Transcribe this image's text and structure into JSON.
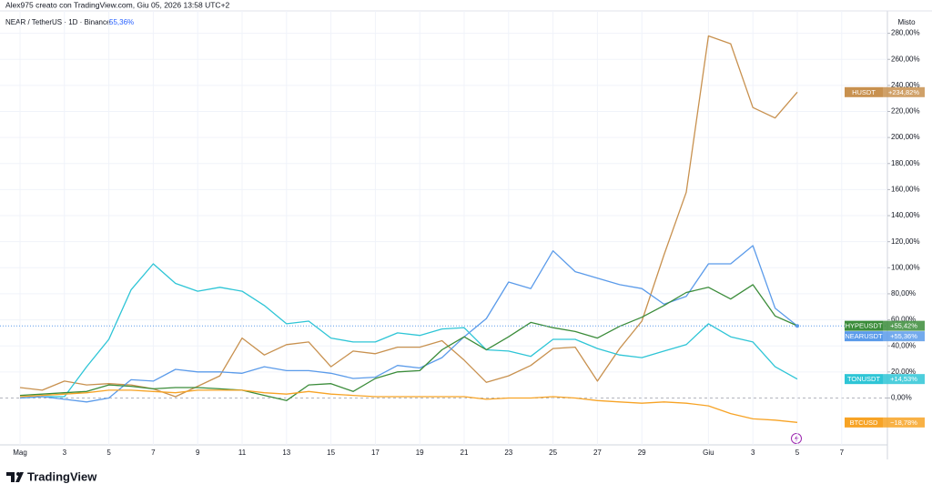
{
  "chart_data": {
    "type": "line",
    "header": "Alex975 creato con TradingView.com, Giu 05, 2026 13:58 UTC+2",
    "symbol": "NEAR / TetherUS · 1D · Binance",
    "symbol_change": "55,36%",
    "scale_mode": "Misto",
    "brand": "TradingView",
    "categories": [
      "Mag",
      null,
      "3",
      null,
      "5",
      null,
      "7",
      null,
      "9",
      null,
      "11",
      null,
      "13",
      null,
      "15",
      null,
      "17",
      null,
      "19",
      null,
      "21",
      null,
      "23",
      null,
      "25",
      null,
      "27",
      null,
      "29",
      null,
      null,
      "Giu",
      null,
      "3",
      null,
      "5",
      null,
      "7"
    ],
    "ylim": [
      -36,
      293
    ],
    "yticks": [
      {
        "value": 0,
        "label": "0,00%"
      },
      {
        "value": 20,
        "label": "20,00%"
      },
      {
        "value": 40,
        "label": "40,00%"
      },
      {
        "value": 60,
        "label": "60,00%"
      },
      {
        "value": 80,
        "label": "80,00%"
      },
      {
        "value": 100,
        "label": "100,00%"
      },
      {
        "value": 120,
        "label": "120,00%"
      },
      {
        "value": 140,
        "label": "140,00%"
      },
      {
        "value": 160,
        "label": "160,00%"
      },
      {
        "value": 180,
        "label": "180,00%"
      },
      {
        "value": 200,
        "label": "200,00%"
      },
      {
        "value": 220,
        "label": "220,00%"
      },
      {
        "value": 240,
        "label": "240,00%"
      },
      {
        "value": 260,
        "label": "260,00%"
      },
      {
        "value": 280,
        "label": "280,00%"
      }
    ],
    "grid": true,
    "series": [
      {
        "name": "HUSDT",
        "color": "#c8914f",
        "values": [
          8,
          6,
          13,
          10,
          11,
          10,
          7,
          1,
          9,
          17,
          46,
          33,
          41,
          43,
          24,
          36,
          34,
          39,
          39,
          44,
          29,
          12,
          17,
          25,
          38,
          39,
          13,
          38,
          59,
          110,
          158,
          278,
          272,
          223,
          215,
          234.82,
          null,
          null
        ],
        "value_labels": [
          null,
          null,
          null,
          null,
          null,
          null,
          null,
          null,
          null,
          null,
          null,
          null,
          null,
          null,
          null,
          null,
          null,
          null,
          null,
          null,
          null,
          null,
          null,
          null,
          null,
          null,
          null,
          null,
          null,
          null,
          null,
          null,
          null,
          null,
          null,
          "+234,82%",
          null,
          null
        ]
      },
      {
        "name": "TONUSDT",
        "color": "#2ec5d6",
        "values": [
          0,
          1,
          1,
          24,
          45,
          83,
          103,
          88,
          82,
          85,
          82,
          71,
          57,
          59,
          46,
          43,
          43,
          50,
          48,
          53,
          54,
          37,
          36,
          32,
          45,
          45,
          38,
          33,
          31,
          36,
          41,
          57,
          47,
          43,
          24,
          14.53,
          null,
          null
        ],
        "value_labels": [
          null,
          null,
          null,
          null,
          null,
          null,
          null,
          null,
          null,
          null,
          null,
          null,
          null,
          null,
          null,
          null,
          null,
          null,
          null,
          null,
          null,
          null,
          null,
          null,
          null,
          null,
          null,
          null,
          null,
          null,
          null,
          null,
          null,
          null,
          null,
          "+14,53%",
          null,
          null
        ]
      },
      {
        "name": "NEARUSDT",
        "color": "#5b9bea",
        "values": [
          0,
          1,
          -1,
          -3,
          0,
          14,
          13,
          22,
          20,
          20,
          19,
          24,
          21,
          21,
          19,
          15,
          16,
          25,
          23,
          31,
          47,
          61,
          89,
          84,
          113,
          97,
          92,
          87,
          84,
          72,
          78,
          103,
          103,
          117,
          69,
          55.36,
          null,
          null
        ],
        "value_labels": [
          null,
          null,
          null,
          null,
          null,
          null,
          null,
          null,
          null,
          null,
          null,
          null,
          null,
          null,
          null,
          null,
          null,
          null,
          null,
          null,
          null,
          null,
          null,
          null,
          null,
          null,
          null,
          null,
          null,
          null,
          null,
          null,
          null,
          null,
          null,
          "+55,36%",
          null,
          null
        ]
      },
      {
        "name": "HYPEUSDT",
        "color": "#3b8c3a",
        "values": [
          2,
          3,
          4,
          5,
          10,
          9,
          7,
          8,
          8,
          7,
          6,
          2,
          -2,
          10,
          11,
          5,
          15,
          20,
          21,
          37,
          47,
          37,
          47,
          58,
          54,
          51,
          46,
          55,
          62,
          71,
          81,
          85,
          76,
          87,
          63,
          55.42,
          null,
          null
        ],
        "value_labels": [
          null,
          null,
          null,
          null,
          null,
          null,
          null,
          null,
          null,
          null,
          null,
          null,
          null,
          null,
          null,
          null,
          null,
          null,
          null,
          null,
          null,
          null,
          null,
          null,
          null,
          null,
          null,
          null,
          null,
          null,
          null,
          null,
          null,
          null,
          null,
          "+55,42%",
          null,
          null
        ]
      },
      {
        "name": "BTCUSD",
        "color": "#f7a325",
        "values": [
          1,
          2,
          3,
          4,
          6,
          6,
          5,
          4,
          6,
          6,
          6,
          4,
          3,
          5,
          3,
          2,
          1,
          1,
          1,
          1,
          1,
          -1,
          0,
          0,
          1,
          0,
          -2,
          -3,
          -4,
          -3,
          -4,
          -6,
          -12,
          -16,
          -17,
          -18.78,
          null,
          null
        ],
        "value_labels": [
          null,
          null,
          null,
          null,
          null,
          null,
          null,
          null,
          null,
          null,
          null,
          null,
          null,
          null,
          null,
          null,
          null,
          null,
          null,
          null,
          null,
          null,
          null,
          null,
          null,
          null,
          null,
          null,
          null,
          null,
          null,
          null,
          null,
          null,
          null,
          "−18,78%",
          null,
          null
        ]
      }
    ]
  }
}
